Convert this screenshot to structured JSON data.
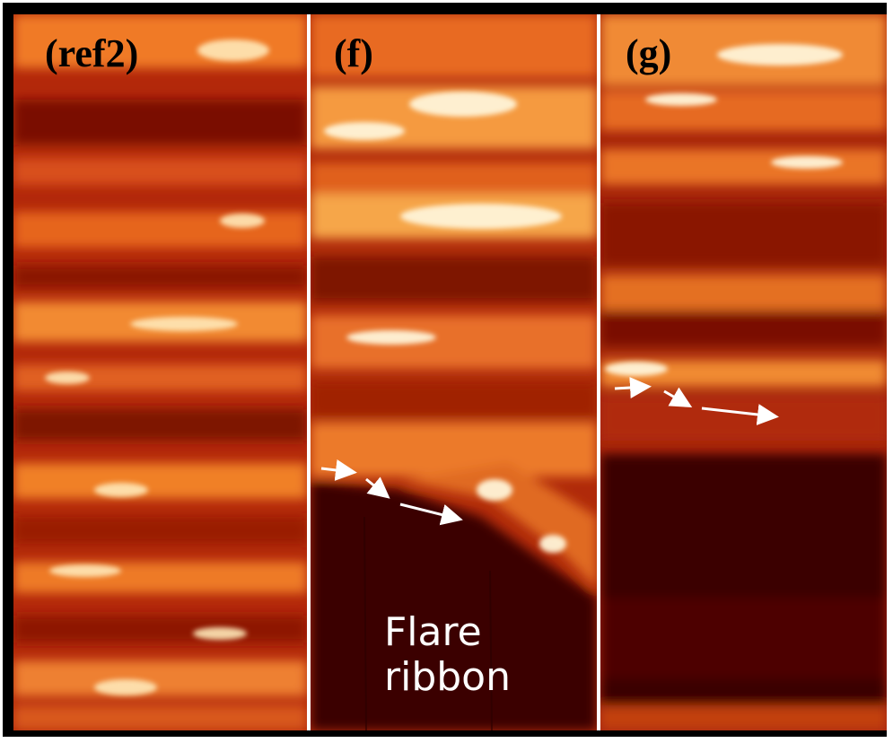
{
  "panels": [
    {
      "id": "ref2",
      "label": "(ref2)"
    },
    {
      "id": "f",
      "label": "(f)"
    },
    {
      "id": "g",
      "label": "(g)"
    }
  ],
  "annotation": {
    "line1": "Flare",
    "line2": "ribbon"
  },
  "colors": {
    "background_dark": "#3a0000",
    "mid": "#c0300a",
    "bright": "#f08020",
    "highlight": "#fff4d8",
    "arrow": "#ffffff"
  }
}
